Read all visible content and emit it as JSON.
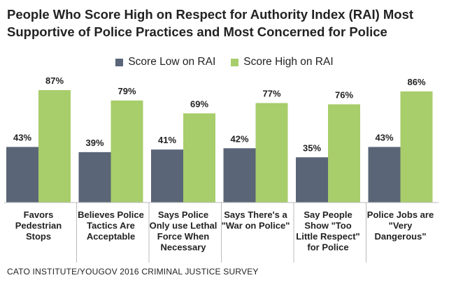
{
  "chart_data": {
    "type": "bar",
    "title": "People Who Score High on Respect for Authority Index (RAI) Most Supportive of Police Practices and Most Concerned for Police",
    "categories": [
      [
        "Favors",
        "Pedestrian",
        "Stops"
      ],
      [
        "Believes Police",
        "Tactics Are",
        "Acceptable"
      ],
      [
        "Says Police",
        "Only use Lethal",
        "Force When",
        "Necessary"
      ],
      [
        "Says There's a",
        "\"War on Police\""
      ],
      [
        "Say People",
        "Show \"Too",
        "Little Respect\"",
        "for Police"
      ],
      [
        "Police Jobs are",
        "\"Very",
        "Dangerous\""
      ]
    ],
    "series": [
      {
        "name": "Score Low on RAI",
        "color": "#5a6577",
        "values": [
          43,
          39,
          41,
          42,
          35,
          43
        ]
      },
      {
        "name": "Score High on RAI",
        "color": "#a8cd6b",
        "values": [
          87,
          79,
          69,
          77,
          76,
          86
        ]
      }
    ],
    "value_suffix": "%",
    "ylim": [
      0,
      100
    ],
    "xlabel": "",
    "ylabel": "",
    "legend": "top-center",
    "grid": false
  },
  "source": "CATO INSTITUTE/YOUGOV 2016 CRIMINAL JUSTICE SURVEY"
}
